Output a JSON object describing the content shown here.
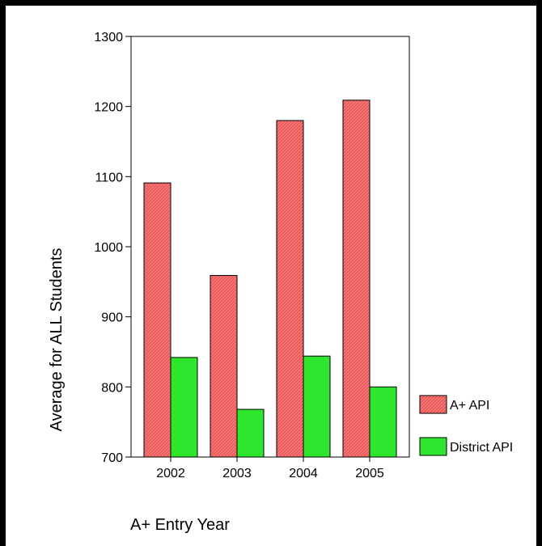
{
  "chart_data": {
    "type": "bar",
    "title": "",
    "xlabel": "A+ Entry Year",
    "ylabel": "Average for ALL Students",
    "categories": [
      "2002",
      "2003",
      "2004",
      "2005"
    ],
    "series": [
      {
        "name": "A+ API",
        "values": [
          1091,
          959,
          1180,
          1209
        ],
        "color": "#ef5a5a"
      },
      {
        "name": "District API",
        "values": [
          842,
          768,
          844,
          800
        ],
        "color": "#2ee62e"
      }
    ],
    "ylim": [
      700,
      1300
    ],
    "yticks": [
      700,
      800,
      900,
      1000,
      1100,
      1200,
      1300
    ],
    "grid": false,
    "legend_position": "right"
  }
}
